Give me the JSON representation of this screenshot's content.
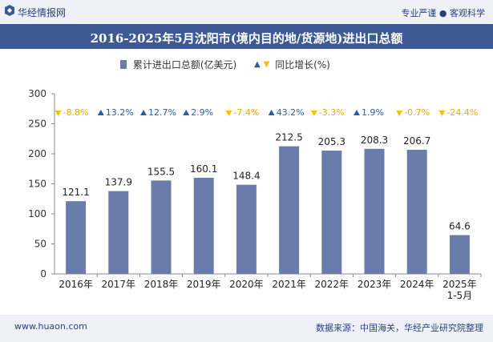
{
  "header": {
    "brand": "华经情报网",
    "tagline": "专业严谨 ● 客观科学"
  },
  "title": "2016-2025年5月沈阳市(境内目的地/货源地)进出口总额",
  "legend": {
    "bar_label": "累计进出口总额(亿美元)",
    "growth_label": "同比增长(%)"
  },
  "footer": {
    "website": "www.huaon.com",
    "source": "数据来源：中国海关，华经产业研究院整理"
  },
  "colors": {
    "bar": "#6a7daa",
    "up": "#2d5aa0",
    "down": "#f5c000",
    "header_bg": "#3e5a94"
  },
  "chart_data": {
    "type": "bar",
    "categories": [
      "2016年",
      "2017年",
      "2018年",
      "2019年",
      "2020年",
      "2021年",
      "2022年",
      "2023年",
      "2024年",
      "2025年\n1-5月"
    ],
    "series": [
      {
        "name": "累计进出口总额(亿美元)",
        "values": [
          121.1,
          137.9,
          155.5,
          160.1,
          148.4,
          212.5,
          205.3,
          208.3,
          206.7,
          64.6
        ]
      },
      {
        "name": "同比增长(%)",
        "values": [
          -8.8,
          13.2,
          12.7,
          2.9,
          -7.4,
          43.2,
          -3.3,
          1.9,
          -0.7,
          -24.4
        ]
      }
    ],
    "growth_labels": [
      "-8.8%",
      "13.2%",
      "12.7%",
      "2.9%",
      "-7.4%",
      "43.2%",
      "-3.3%",
      "1.9%",
      "-0.7%",
      "-24.4%"
    ],
    "yticks": [
      0,
      50,
      100,
      150,
      200,
      250,
      300
    ],
    "ylim": [
      0,
      300
    ],
    "grid": false
  }
}
